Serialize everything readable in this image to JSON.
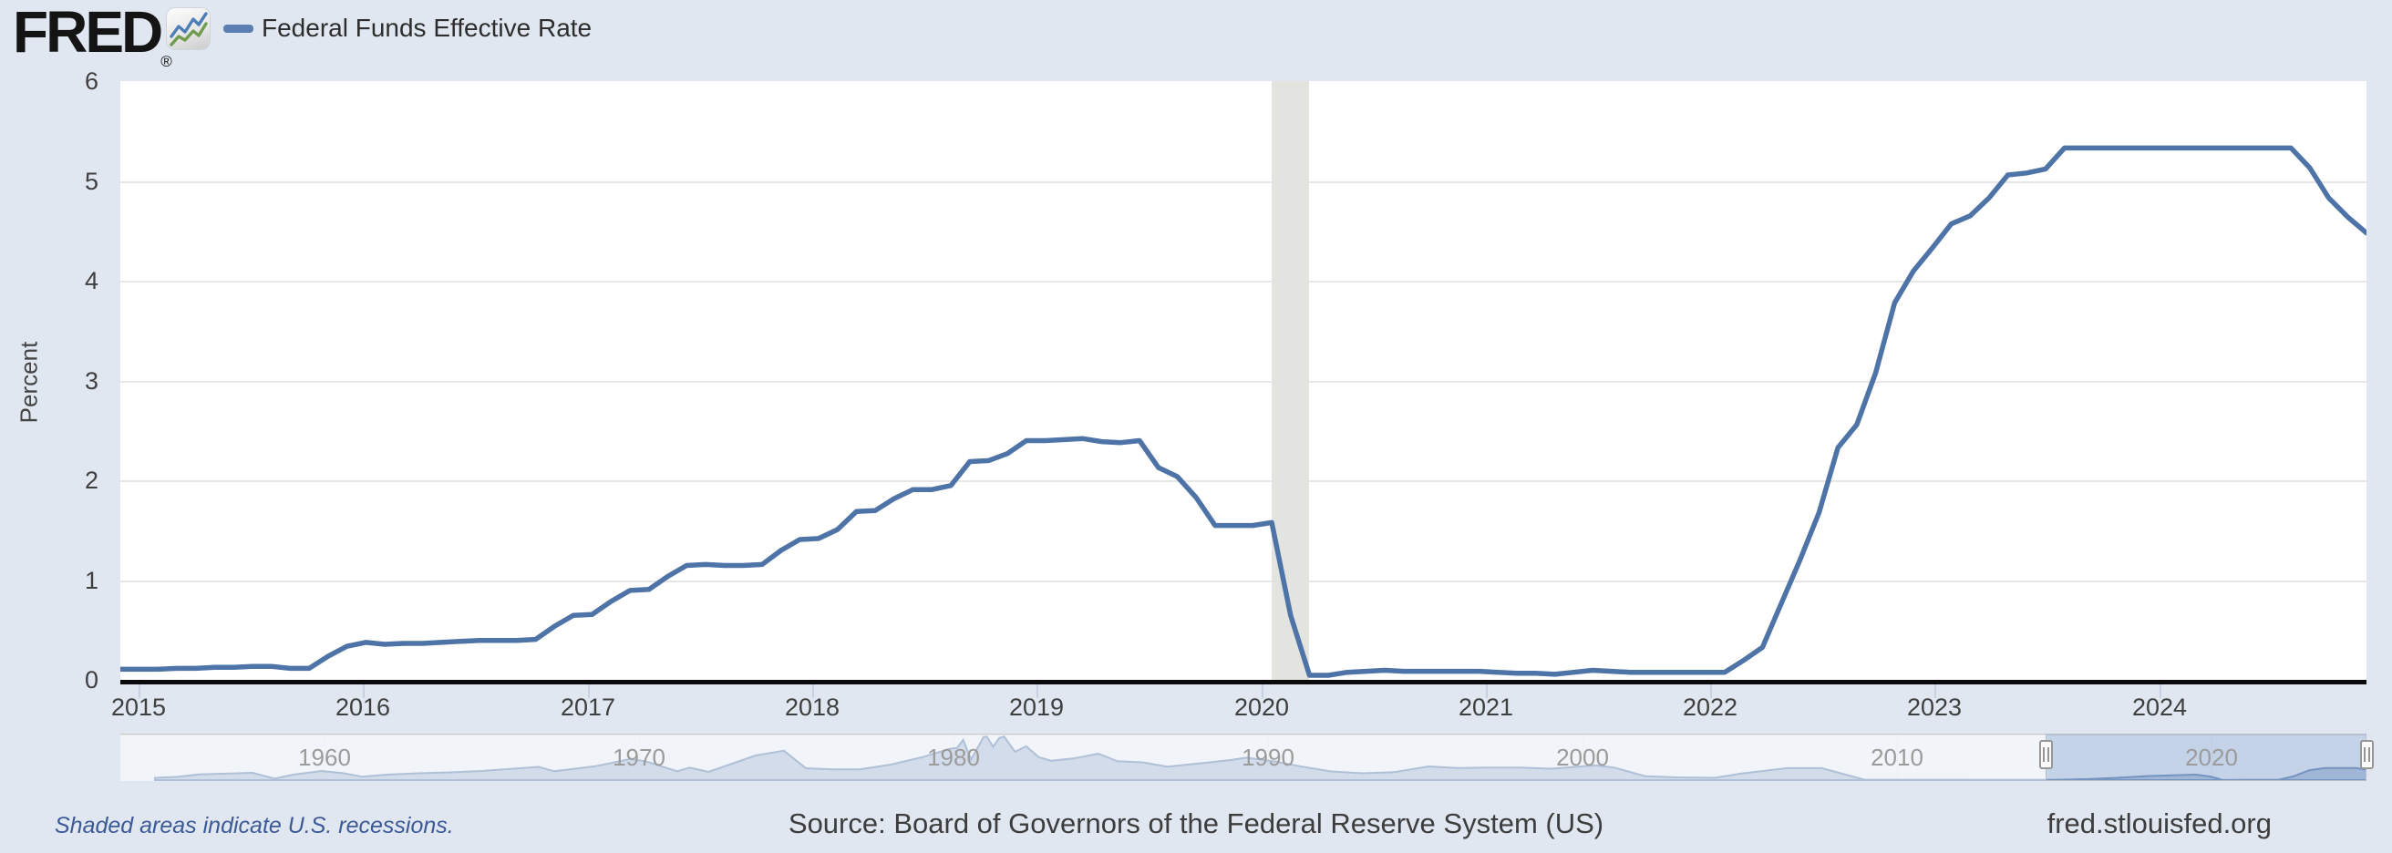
{
  "header": {
    "brand": "FRED",
    "registered_mark": "®",
    "legend_label": "Federal Funds Effective Rate"
  },
  "y_axis": {
    "title": "Percent",
    "ticks": [
      "0",
      "1",
      "2",
      "3",
      "4",
      "5",
      "6"
    ]
  },
  "x_axis": {
    "ticks": [
      "2015",
      "2016",
      "2017",
      "2018",
      "2019",
      "2020",
      "2021",
      "2022",
      "2023",
      "2024"
    ]
  },
  "navigator": {
    "decade_labels": [
      "1960",
      "1970",
      "1980",
      "1990",
      "2000",
      "2010",
      "2020"
    ]
  },
  "footer": {
    "recession_note": "Shaded areas indicate U.S. recessions.",
    "source": "Source: Board of Governors of the Federal Reserve System (US)",
    "site": "fred.stlouisfed.org"
  },
  "colors": {
    "line_blue": "#4e73a7",
    "legend_dash": "#5b7fb3",
    "navigator_fill": "#90a8ca",
    "recession_gray": "#e3e3e0",
    "page_background": "#e1e7f0",
    "selection_tint": "rgba(164,186,222,0.45)",
    "logo_icon_blue": "#4d7eb5",
    "logo_icon_green": "#6f9d4f"
  },
  "chart_data": {
    "type": "line",
    "title": "Federal Funds Effective Rate",
    "xlabel": "",
    "ylabel": "Percent",
    "ylim": [
      0,
      6
    ],
    "grid": "horizontal",
    "legend_position": "top-left",
    "frequency": "monthly",
    "x_range": [
      "2015-01",
      "2024-12"
    ],
    "recession_band": {
      "from": "2020-02",
      "to": "2020-04"
    },
    "series": [
      {
        "name": "Federal Funds Effective Rate",
        "units": "percent",
        "values": [
          0.11,
          0.11,
          0.11,
          0.12,
          0.12,
          0.13,
          0.13,
          0.14,
          0.14,
          0.12,
          0.12,
          0.24,
          0.34,
          0.38,
          0.36,
          0.37,
          0.37,
          0.38,
          0.39,
          0.4,
          0.4,
          0.4,
          0.41,
          0.54,
          0.65,
          0.66,
          0.79,
          0.9,
          0.91,
          1.04,
          1.15,
          1.16,
          1.15,
          1.15,
          1.16,
          1.3,
          1.41,
          1.42,
          1.51,
          1.69,
          1.7,
          1.82,
          1.91,
          1.91,
          1.95,
          2.19,
          2.2,
          2.27,
          2.4,
          2.4,
          2.41,
          2.42,
          2.39,
          2.38,
          2.4,
          2.13,
          2.04,
          1.83,
          1.55,
          1.55,
          1.55,
          1.58,
          0.65,
          0.05,
          0.05,
          0.08,
          0.09,
          0.1,
          0.09,
          0.09,
          0.09,
          0.09,
          0.09,
          0.08,
          0.07,
          0.07,
          0.06,
          0.08,
          0.1,
          0.09,
          0.08,
          0.08,
          0.08,
          0.08,
          0.08,
          0.08,
          0.2,
          0.33,
          0.77,
          1.21,
          1.68,
          2.33,
          2.56,
          3.08,
          3.78,
          4.1,
          4.33,
          4.57,
          4.65,
          4.83,
          5.06,
          5.08,
          5.12,
          5.33,
          5.33,
          5.33,
          5.33,
          5.33,
          5.33,
          5.33,
          5.33,
          5.33,
          5.33,
          5.33,
          5.33,
          5.33,
          5.13,
          4.83,
          4.64,
          4.48
        ]
      }
    ],
    "navigator": {
      "x_domain": [
        1953.5,
        2024.92
      ],
      "y_max": 20,
      "selected_range": [
        2015.0,
        2024.92
      ],
      "points": [
        [
          1954.6,
          1.0
        ],
        [
          1955.3,
          1.4
        ],
        [
          1956,
          2.5
        ],
        [
          1957,
          2.9
        ],
        [
          1957.7,
          3.2
        ],
        [
          1958.4,
          0.7
        ],
        [
          1959,
          2.4
        ],
        [
          1959.9,
          4.0
        ],
        [
          1960.6,
          3.0
        ],
        [
          1961.2,
          1.5
        ],
        [
          1962,
          2.4
        ],
        [
          1963,
          3.0
        ],
        [
          1964,
          3.4
        ],
        [
          1965,
          4.0
        ],
        [
          1966.8,
          5.8
        ],
        [
          1967.3,
          3.9
        ],
        [
          1968.6,
          6.1
        ],
        [
          1969.7,
          9.2
        ],
        [
          1970.2,
          8.3
        ],
        [
          1971.2,
          3.9
        ],
        [
          1971.6,
          5.5
        ],
        [
          1972.2,
          3.6
        ],
        [
          1973.7,
          10.8
        ],
        [
          1974.6,
          12.9
        ],
        [
          1975.3,
          5.2
        ],
        [
          1976.2,
          4.7
        ],
        [
          1977,
          4.7
        ],
        [
          1978,
          6.8
        ],
        [
          1979,
          10.1
        ],
        [
          1979.9,
          13.8
        ],
        [
          1980.1,
          14.1
        ],
        [
          1980.3,
          17.6
        ],
        [
          1980.55,
          9.0
        ],
        [
          1980.95,
          18.9
        ],
        [
          1981.05,
          19.1
        ],
        [
          1981.25,
          14.7
        ],
        [
          1981.45,
          18.5
        ],
        [
          1981.6,
          19.1
        ],
        [
          1981.95,
          12.4
        ],
        [
          1982.3,
          14.9
        ],
        [
          1982.7,
          10.1
        ],
        [
          1983.1,
          8.5
        ],
        [
          1983.8,
          9.5
        ],
        [
          1984.6,
          11.6
        ],
        [
          1985.2,
          8.3
        ],
        [
          1986,
          7.8
        ],
        [
          1986.8,
          5.9
        ],
        [
          1987.8,
          7.3
        ],
        [
          1988.8,
          8.8
        ],
        [
          1989.3,
          9.85
        ],
        [
          1990.2,
          8.2
        ],
        [
          1991,
          6.1
        ],
        [
          1992,
          3.8
        ],
        [
          1993,
          3.0
        ],
        [
          1994,
          3.5
        ],
        [
          1995.1,
          6.0
        ],
        [
          1996,
          5.3
        ],
        [
          1997,
          5.5
        ],
        [
          1998,
          5.5
        ],
        [
          1999,
          5.0
        ],
        [
          2000.4,
          6.5
        ],
        [
          2001,
          5.5
        ],
        [
          2002,
          1.7
        ],
        [
          2003,
          1.2
        ],
        [
          2004.2,
          1.0
        ],
        [
          2005,
          2.8
        ],
        [
          2006.5,
          5.25
        ],
        [
          2007.6,
          5.25
        ],
        [
          2008.2,
          3.0
        ],
        [
          2008.95,
          0.2
        ],
        [
          2010,
          0.17
        ],
        [
          2012,
          0.14
        ],
        [
          2014,
          0.09
        ],
        [
          2015,
          0.12
        ],
        [
          2016,
          0.4
        ],
        [
          2017,
          1.0
        ],
        [
          2018,
          1.8
        ],
        [
          2019.5,
          2.4
        ],
        [
          2019.95,
          1.55
        ],
        [
          2020.2,
          0.65
        ],
        [
          2020.35,
          0.05
        ],
        [
          2021,
          0.08
        ],
        [
          2022.1,
          0.1
        ],
        [
          2022.6,
          1.68
        ],
        [
          2023.1,
          4.33
        ],
        [
          2023.6,
          5.33
        ],
        [
          2024.6,
          5.33
        ],
        [
          2024.92,
          4.48
        ]
      ]
    }
  }
}
